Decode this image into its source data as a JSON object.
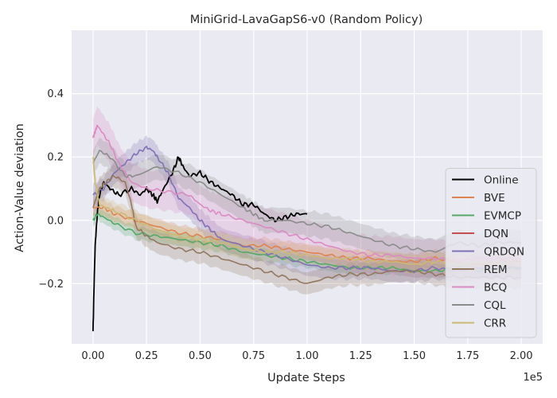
{
  "chart_data": {
    "type": "line",
    "title": "MiniGrid-LavaGapS6-v0 (Random Policy)",
    "xlabel": "Update Steps",
    "ylabel": "Action-Value deviation",
    "x_offset_label": "1e5",
    "xlim": [
      -10000,
      210000
    ],
    "ylim": [
      -0.39,
      0.6
    ],
    "x_ticks": [
      0,
      25000,
      50000,
      75000,
      100000,
      125000,
      150000,
      175000,
      200000
    ],
    "x_tick_labels": [
      "0.00",
      "0.25",
      "0.50",
      "0.75",
      "1.00",
      "1.25",
      "1.50",
      "1.75",
      "2.00"
    ],
    "y_ticks": [
      -0.2,
      0.0,
      0.2,
      0.4
    ],
    "y_tick_labels": [
      "−0.2",
      "0.0",
      "0.2",
      "0.4"
    ],
    "grid": true,
    "legend_position": "lower-right",
    "series": [
      {
        "name": "Online",
        "color": "#000000",
        "band": 0.0,
        "x": [
          0,
          500,
          1000,
          2000,
          3000,
          5000,
          8000,
          12000,
          18000,
          22000,
          25000,
          28000,
          30000,
          33000,
          37000,
          40000,
          42000,
          45000,
          50000,
          55000,
          60000,
          65000,
          70000,
          75000,
          80000,
          85000,
          90000,
          95000,
          100000
        ],
        "y": [
          -0.35,
          -0.2,
          -0.08,
          0.02,
          0.08,
          0.12,
          0.1,
          0.08,
          0.1,
          0.08,
          0.1,
          0.08,
          0.06,
          0.1,
          0.15,
          0.2,
          0.17,
          0.14,
          0.15,
          0.12,
          0.1,
          0.08,
          0.05,
          0.05,
          0.02,
          0.0,
          0.01,
          0.02,
          0.02
        ]
      },
      {
        "name": "BVE",
        "color": "#dd8452",
        "band": 0.025,
        "x": [
          0,
          5000,
          10000,
          20000,
          30000,
          40000,
          50000,
          60000,
          70000,
          80000,
          90000,
          100000,
          110000,
          120000,
          130000,
          140000,
          150000,
          160000,
          170000,
          180000,
          190000,
          200000
        ],
        "y": [
          0.04,
          0.04,
          0.02,
          0.0,
          -0.02,
          -0.04,
          -0.05,
          -0.06,
          -0.08,
          -0.08,
          -0.09,
          -0.1,
          -0.11,
          -0.12,
          -0.12,
          -0.13,
          -0.13,
          -0.12,
          -0.13,
          -0.14,
          -0.13,
          -0.13
        ]
      },
      {
        "name": "EVMCP",
        "color": "#55a868",
        "band": 0.02,
        "x": [
          0,
          2000,
          5000,
          10000,
          20000,
          30000,
          40000,
          50000,
          60000,
          70000,
          80000,
          90000,
          100000,
          110000,
          120000,
          130000,
          140000,
          150000,
          160000,
          170000,
          180000,
          190000,
          200000
        ],
        "y": [
          0.0,
          0.02,
          0.01,
          -0.01,
          -0.04,
          -0.05,
          -0.06,
          -0.07,
          -0.08,
          -0.1,
          -0.11,
          -0.12,
          -0.13,
          -0.14,
          -0.15,
          -0.15,
          -0.15,
          -0.16,
          -0.16,
          -0.15,
          -0.16,
          -0.15,
          -0.15
        ]
      },
      {
        "name": "DQN",
        "color": "#c44e52",
        "band": 0.0,
        "x": [],
        "y": []
      },
      {
        "name": "QRDQN",
        "color": "#8172b3",
        "band": 0.035,
        "x": [
          0,
          5000,
          10000,
          15000,
          20000,
          25000,
          28000,
          30000,
          35000,
          40000,
          45000,
          50000,
          55000,
          60000,
          70000,
          80000,
          90000,
          100000,
          110000,
          120000,
          130000,
          140000,
          150000,
          160000,
          170000,
          180000,
          190000,
          200000
        ],
        "y": [
          0.08,
          0.1,
          0.15,
          0.18,
          0.21,
          0.23,
          0.22,
          0.2,
          0.15,
          0.07,
          0.04,
          0.0,
          -0.03,
          -0.06,
          -0.08,
          -0.1,
          -0.12,
          -0.14,
          -0.15,
          -0.15,
          -0.15,
          -0.16,
          -0.16,
          -0.15,
          -0.16,
          -0.15,
          -0.15,
          -0.15
        ]
      },
      {
        "name": "REM",
        "color": "#937860",
        "band": 0.035,
        "x": [
          0,
          3000,
          6000,
          10000,
          15000,
          18000,
          20000,
          25000,
          30000,
          40000,
          50000,
          60000,
          70000,
          80000,
          90000,
          100000,
          110000,
          120000,
          130000,
          140000,
          150000,
          160000,
          170000,
          180000,
          190000,
          200000
        ],
        "y": [
          0.04,
          0.1,
          0.12,
          0.14,
          0.12,
          0.05,
          -0.02,
          -0.05,
          -0.07,
          -0.09,
          -0.1,
          -0.12,
          -0.14,
          -0.16,
          -0.18,
          -0.2,
          -0.18,
          -0.17,
          -0.17,
          -0.16,
          -0.16,
          -0.17,
          -0.18,
          -0.18,
          -0.18,
          -0.18
        ]
      },
      {
        "name": "BCQ",
        "color": "#da8bc3",
        "band": 0.06,
        "x": [
          0,
          1000,
          2000,
          4000,
          8000,
          12000,
          18000,
          25000,
          35000,
          45000,
          50000,
          55000,
          60000,
          70000,
          80000,
          90000,
          100000,
          110000,
          120000,
          130000,
          140000,
          150000,
          160000,
          170000,
          180000,
          190000,
          200000
        ],
        "y": [
          0.26,
          0.28,
          0.3,
          0.28,
          0.24,
          0.18,
          0.12,
          0.1,
          0.09,
          0.08,
          0.05,
          0.03,
          0.02,
          0.0,
          -0.02,
          -0.04,
          -0.06,
          -0.08,
          -0.1,
          -0.11,
          -0.11,
          -0.12,
          -0.12,
          -0.13,
          -0.12,
          -0.12,
          -0.12
        ]
      },
      {
        "name": "CQL",
        "color": "#8c8c8c",
        "band": 0.04,
        "x": [
          0,
          3000,
          8000,
          15000,
          20000,
          30000,
          40000,
          50000,
          60000,
          70000,
          75000,
          80000,
          90000,
          100000,
          110000,
          120000,
          130000,
          140000,
          150000,
          160000,
          170000,
          180000,
          190000,
          200000
        ],
        "y": [
          0.18,
          0.22,
          0.2,
          0.14,
          0.14,
          0.17,
          0.15,
          0.12,
          0.08,
          0.04,
          0.02,
          0.0,
          0.0,
          -0.01,
          -0.02,
          -0.04,
          -0.06,
          -0.08,
          -0.09,
          -0.1,
          -0.07,
          -0.08,
          -0.07,
          -0.07
        ]
      },
      {
        "name": "CRR",
        "color": "#ccb974",
        "band": 0.03,
        "x": [
          0,
          1000,
          3000,
          6000,
          10000,
          20000,
          30000,
          40000,
          50000,
          60000,
          70000,
          80000,
          90000,
          100000,
          110000,
          120000,
          130000,
          140000,
          150000,
          160000,
          170000,
          180000,
          190000,
          200000
        ],
        "y": [
          0.2,
          0.12,
          0.05,
          0.04,
          0.03,
          0.0,
          -0.03,
          -0.05,
          -0.06,
          -0.07,
          -0.09,
          -0.1,
          -0.1,
          -0.11,
          -0.12,
          -0.12,
          -0.13,
          -0.13,
          -0.14,
          -0.13,
          -0.14,
          -0.13,
          -0.14,
          -0.14
        ]
      }
    ]
  }
}
